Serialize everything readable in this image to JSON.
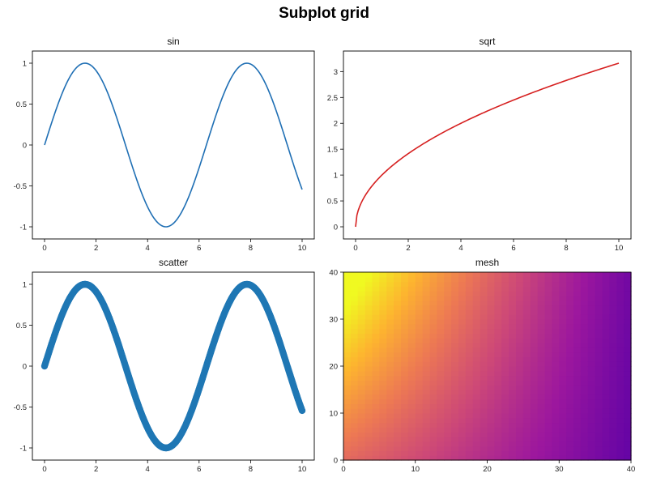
{
  "figure": {
    "title": "Subplot grid"
  },
  "chart_data": [
    {
      "id": "sin",
      "type": "line",
      "title": "sin",
      "xlim": [
        0,
        10
      ],
      "ylim": [
        -1,
        1
      ],
      "x_ticks": [
        0,
        2,
        4,
        6,
        8,
        10
      ],
      "y_ticks": [
        -1,
        -0.5,
        0,
        0.5,
        1
      ],
      "x_tick_labels": [
        "0",
        "2",
        "4",
        "6",
        "8",
        "10"
      ],
      "y_tick_labels": [
        "-1",
        "-0.5",
        "0",
        "0.5",
        "1"
      ],
      "function": "sin(x)",
      "x_range": [
        0,
        10
      ],
      "color": "#1f6fb4"
    },
    {
      "id": "sqrt",
      "type": "line",
      "title": "sqrt",
      "xlim": [
        0,
        10
      ],
      "ylim": [
        0,
        3.162
      ],
      "x_ticks": [
        0,
        2,
        4,
        6,
        8,
        10
      ],
      "y_ticks": [
        0,
        0.5,
        1,
        1.5,
        2,
        2.5,
        3
      ],
      "x_tick_labels": [
        "0",
        "2",
        "4",
        "6",
        "8",
        "10"
      ],
      "y_tick_labels": [
        "0",
        "0.5",
        "1",
        "1.5",
        "2",
        "2.5",
        "3"
      ],
      "function": "sqrt(x)",
      "x_range": [
        0,
        10
      ],
      "color": "#d62020"
    },
    {
      "id": "scatter",
      "type": "scatter",
      "title": "scatter",
      "xlim": [
        0,
        10
      ],
      "ylim": [
        -1,
        1
      ],
      "x_ticks": [
        0,
        2,
        4,
        6,
        8,
        10
      ],
      "y_ticks": [
        -1,
        -0.5,
        0,
        0.5,
        1
      ],
      "x_tick_labels": [
        "0",
        "2",
        "4",
        "6",
        "8",
        "10"
      ],
      "y_tick_labels": [
        "-1",
        "-0.5",
        "0",
        "0.5",
        "1"
      ],
      "function": "sin(x)",
      "x_range": [
        0,
        10
      ],
      "color": "#1f77b4"
    },
    {
      "id": "mesh",
      "type": "heatmap",
      "title": "mesh",
      "xlim": [
        0,
        40
      ],
      "ylim": [
        0,
        40
      ],
      "x_ticks": [
        0,
        10,
        20,
        30,
        40
      ],
      "y_ticks": [
        0,
        10,
        20,
        30,
        40
      ],
      "x_tick_labels": [
        "0",
        "10",
        "20",
        "30",
        "40"
      ],
      "y_tick_labels": [
        "0",
        "10",
        "20",
        "30",
        "40"
      ],
      "grid_cells": [
        40,
        40
      ],
      "colormap": "plasma",
      "colormap_stops": [
        "#0d0887",
        "#5c01a6",
        "#9c179e",
        "#cc4778",
        "#ed7953",
        "#fdb42f",
        "#f0f921"
      ]
    }
  ]
}
